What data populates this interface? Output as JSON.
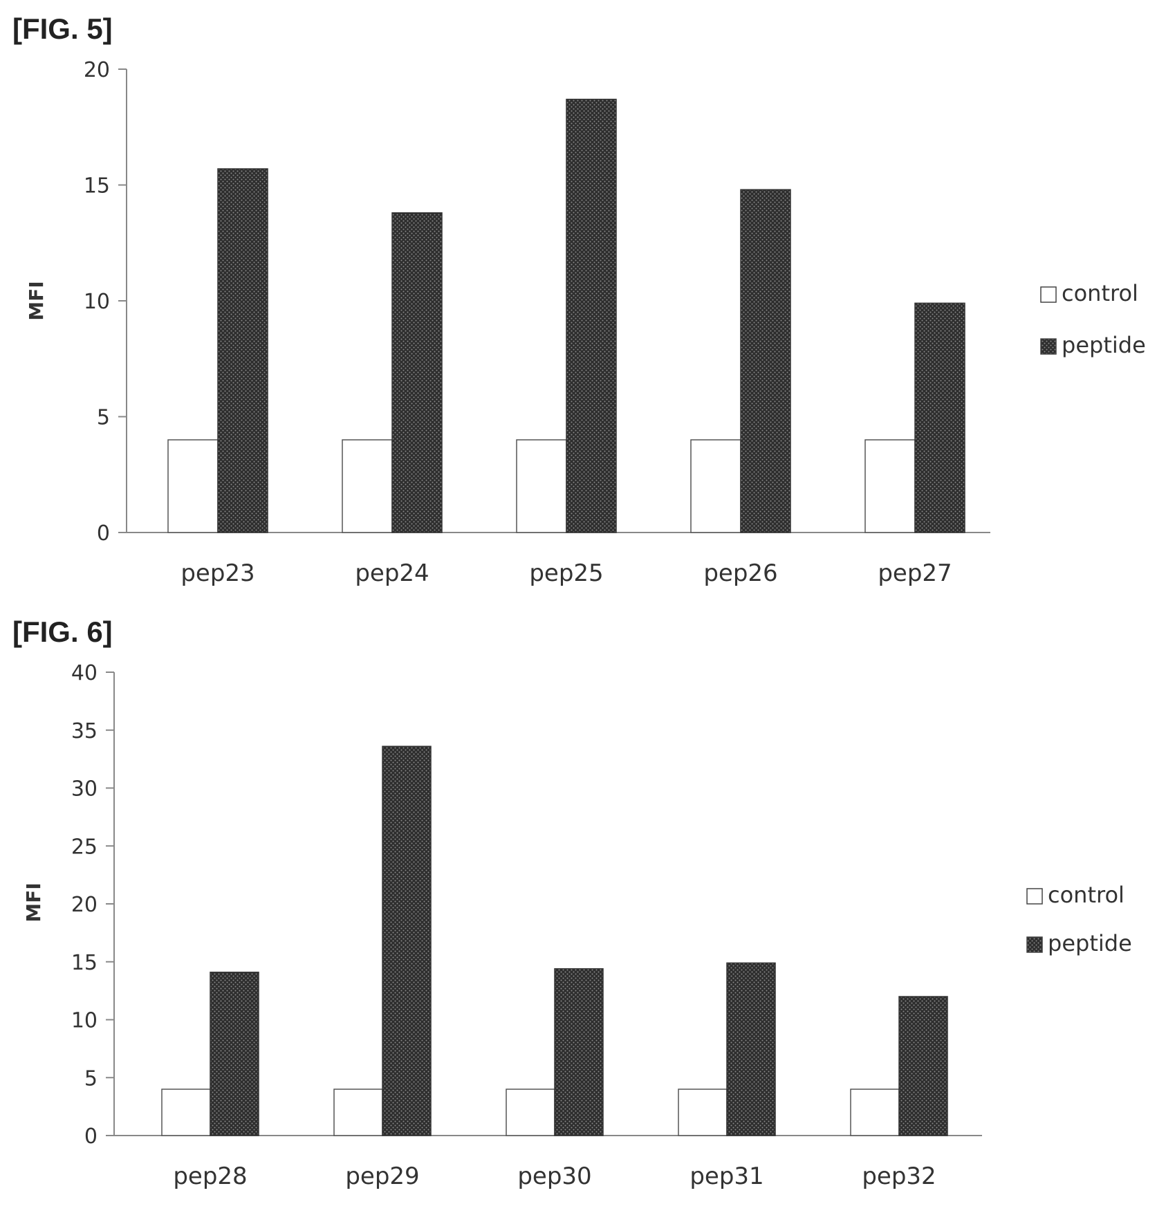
{
  "figures": [
    {
      "label": "[FIG. 5]"
    },
    {
      "label": "[FIG. 6]"
    }
  ],
  "colors": {
    "peptide": "#3a3a3a",
    "control": "#ffffff",
    "axis": "#888888"
  },
  "chart_data": [
    {
      "type": "bar",
      "ylabel": "MFI",
      "xlabel": "",
      "ylim": [
        0,
        20
      ],
      "yticks": [
        0,
        5,
        10,
        15,
        20
      ],
      "categories": [
        "pep23",
        "pep24",
        "pep25",
        "pep26",
        "pep27"
      ],
      "series": [
        {
          "name": "control",
          "values": [
            4,
            4,
            4,
            4,
            4
          ]
        },
        {
          "name": "peptide",
          "values": [
            15.7,
            13.8,
            18.7,
            14.8,
            9.9
          ]
        }
      ],
      "legend_position": "right",
      "grid": false
    },
    {
      "type": "bar",
      "ylabel": "MFI",
      "xlabel": "",
      "ylim": [
        0,
        40
      ],
      "yticks": [
        0,
        5,
        10,
        15,
        20,
        25,
        30,
        35,
        40
      ],
      "categories": [
        "pep28",
        "pep29",
        "pep30",
        "pep31",
        "pep32"
      ],
      "series": [
        {
          "name": "control",
          "values": [
            4,
            4,
            4,
            4,
            4
          ]
        },
        {
          "name": "peptide",
          "values": [
            14.1,
            33.6,
            14.4,
            14.9,
            12.0
          ]
        }
      ],
      "legend_position": "right",
      "grid": false
    }
  ]
}
